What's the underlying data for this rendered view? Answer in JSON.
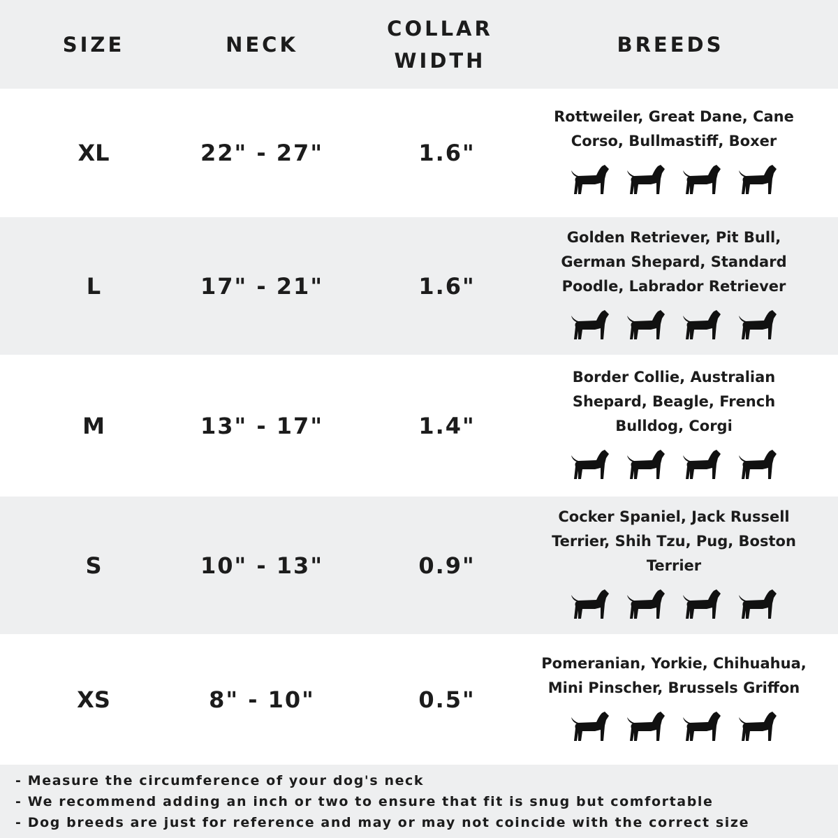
{
  "header": {
    "size": "SIZE",
    "neck": "NECK",
    "collar_width_line1": "COLLAR",
    "collar_width_line2": "WIDTH",
    "breeds": "BREEDS"
  },
  "rows": [
    {
      "size": "XL",
      "neck": "22\" - 27\"",
      "width": "1.6\"",
      "breeds": "Rottweiler, Great Dane, Cane Corso, Bullmastiff, Boxer",
      "icons": [
        "rottweiler-icon",
        "great-dane-icon",
        "cane-corso-icon",
        "bullmastiff-icon"
      ]
    },
    {
      "size": "L",
      "neck": "17\" - 21\"",
      "width": "1.6\"",
      "breeds": "Golden Retriever, Pit Bull, German Shepard, Standard Poodle, Labrador Retriever",
      "icons": [
        "golden-retriever-icon",
        "labrador-icon",
        "poodle-icon",
        "german-shepard-icon"
      ]
    },
    {
      "size": "M",
      "neck": "13\" - 17\"",
      "width": "1.4\"",
      "breeds": "Border Collie, Australian Shepard, Beagle, French Bulldog, Corgi",
      "icons": [
        "border-collie-icon",
        "beagle-icon",
        "french-bulldog-icon",
        "corgi-icon"
      ]
    },
    {
      "size": "S",
      "neck": "10\" - 13\"",
      "width": "0.9\"",
      "breeds": "Cocker Spaniel, Jack Russell Terrier, Shih Tzu, Pug, Boston Terrier",
      "icons": [
        "cocker-spaniel-icon",
        "jack-russell-icon",
        "shih-tzu-icon",
        "pug-icon"
      ]
    },
    {
      "size": "XS",
      "neck": "8\" - 10\"",
      "width": "0.5\"",
      "breeds": "Pomeranian, Yorkie, Chihuahua, Mini Pinscher, Brussels Griffon",
      "icons": [
        "pomeranian-icon",
        "yorkie-icon",
        "chihuahua-icon",
        "mini-pinscher-icon"
      ]
    }
  ],
  "footer": [
    "- Measure the circumference of your dog's neck",
    "- We recommend adding an inch or two to ensure that fit is snug but comfortable",
    "- Dog breeds are just for reference and may or may not coincide with the correct size"
  ],
  "colors": {
    "band": "#eeeff0",
    "text": "#1c1c1c"
  }
}
